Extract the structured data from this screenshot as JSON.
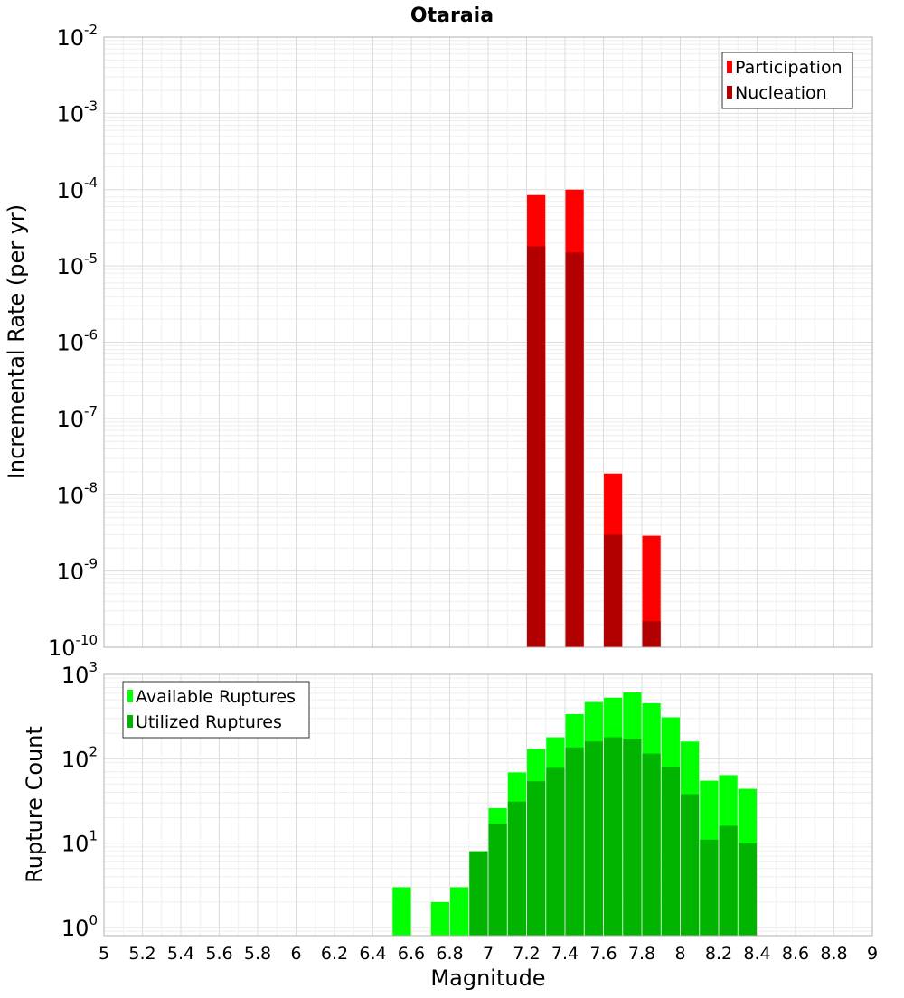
{
  "chart_data": {
    "title": "Otaraia",
    "type": "bar",
    "x_label": "Magnitude",
    "x_range": [
      5,
      9
    ],
    "x_ticks": [
      "5",
      "5.2",
      "5.4",
      "5.6",
      "5.8",
      "6",
      "6.2",
      "6.4",
      "6.6",
      "6.8",
      "7",
      "7.2",
      "7.4",
      "7.6",
      "7.8",
      "8",
      "8.2",
      "8.4",
      "8.6",
      "8.8",
      "9"
    ],
    "grid": true,
    "panels": [
      {
        "name": "rate",
        "y_label": "Incremental Rate (per yr)",
        "y_scale": "log",
        "y_range": [
          1e-10,
          0.01
        ],
        "y_ticks": [
          {
            "base": "10",
            "exp": "-2"
          },
          {
            "base": "10",
            "exp": "-3"
          },
          {
            "base": "10",
            "exp": "-4"
          },
          {
            "base": "10",
            "exp": "-5"
          },
          {
            "base": "10",
            "exp": "-6"
          },
          {
            "base": "10",
            "exp": "-7"
          },
          {
            "base": "10",
            "exp": "-8"
          },
          {
            "base": "10",
            "exp": "-9"
          },
          {
            "base": "10",
            "exp": "-10"
          }
        ],
        "legend_position": "top-right",
        "legend": [
          "Participation",
          "Nucleation"
        ],
        "series": [
          {
            "name": "Participation",
            "color": "#ff0000",
            "x": [
              7.25,
              7.45,
              7.65,
              7.85
            ],
            "values": [
              8.5e-05,
              0.0001,
              1.9e-08,
              2.9e-09
            ]
          },
          {
            "name": "Nucleation",
            "color": "#b20000",
            "x": [
              7.25,
              7.45,
              7.65,
              7.85
            ],
            "values": [
              1.8e-05,
              1.5e-05,
              3e-09,
              2.2e-10
            ]
          }
        ]
      },
      {
        "name": "count",
        "y_label": "Rupture Count",
        "y_scale": "log",
        "y_range": [
          0.8,
          1000
        ],
        "y_ticks": [
          {
            "base": "10",
            "exp": "3"
          },
          {
            "base": "10",
            "exp": "2"
          },
          {
            "base": "10",
            "exp": "1"
          },
          {
            "base": "10",
            "exp": "0"
          }
        ],
        "legend_position": "top-left",
        "legend": [
          "Available Ruptures",
          "Utilized Ruptures"
        ],
        "series": [
          {
            "name": "Available Ruptures",
            "color": "#00ff00",
            "x": [
              6.55,
              6.75,
              6.85,
              6.95,
              7.05,
              7.15,
              7.25,
              7.35,
              7.45,
              7.55,
              7.65,
              7.75,
              7.85,
              7.95,
              8.05,
              8.15,
              8.25,
              8.35
            ],
            "values": [
              3,
              2,
              3,
              8,
              26,
              69,
              131,
              180,
              338,
              470,
              530,
              610,
              455,
              310,
              160,
              55,
              64,
              44
            ]
          },
          {
            "name": "Utilized Ruptures",
            "color": "#00b400",
            "x": [
              6.55,
              6.75,
              6.85,
              6.95,
              7.05,
              7.15,
              7.25,
              7.35,
              7.45,
              7.55,
              7.65,
              7.75,
              7.85,
              7.95,
              8.05,
              8.15,
              8.25,
              8.35
            ],
            "values": [
              0,
              0,
              0,
              8,
              17,
              31,
              54,
              78,
              136,
              160,
              180,
              170,
              115,
              80,
              38,
              11,
              16,
              10
            ]
          }
        ]
      }
    ]
  }
}
